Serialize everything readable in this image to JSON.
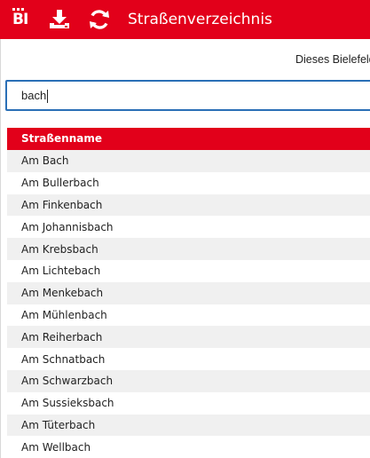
{
  "header": {
    "logo_text": "BI",
    "title": "Straßenverzeichnis",
    "icons": [
      "download-icon",
      "refresh-icon"
    ],
    "background_color": "#e2001a"
  },
  "info": {
    "text": "Dieses Bielefeld"
  },
  "search": {
    "value": "bach",
    "border_color": "#2a6fb6"
  },
  "table": {
    "column_header": "Straßenname",
    "rows": [
      "Am Bach",
      "Am Bullerbach",
      "Am Finkenbach",
      "Am Johannisbach",
      "Am Krebsbach",
      "Am Lichtebach",
      "Am Menkebach",
      "Am Mühlenbach",
      "Am Reiherbach",
      "Am Schnatbach",
      "Am Schwarzbach",
      "Am Sussieksbach",
      "Am Tüterbach",
      "Am Wellbach"
    ],
    "stripe_color": "#f0f0f0"
  }
}
